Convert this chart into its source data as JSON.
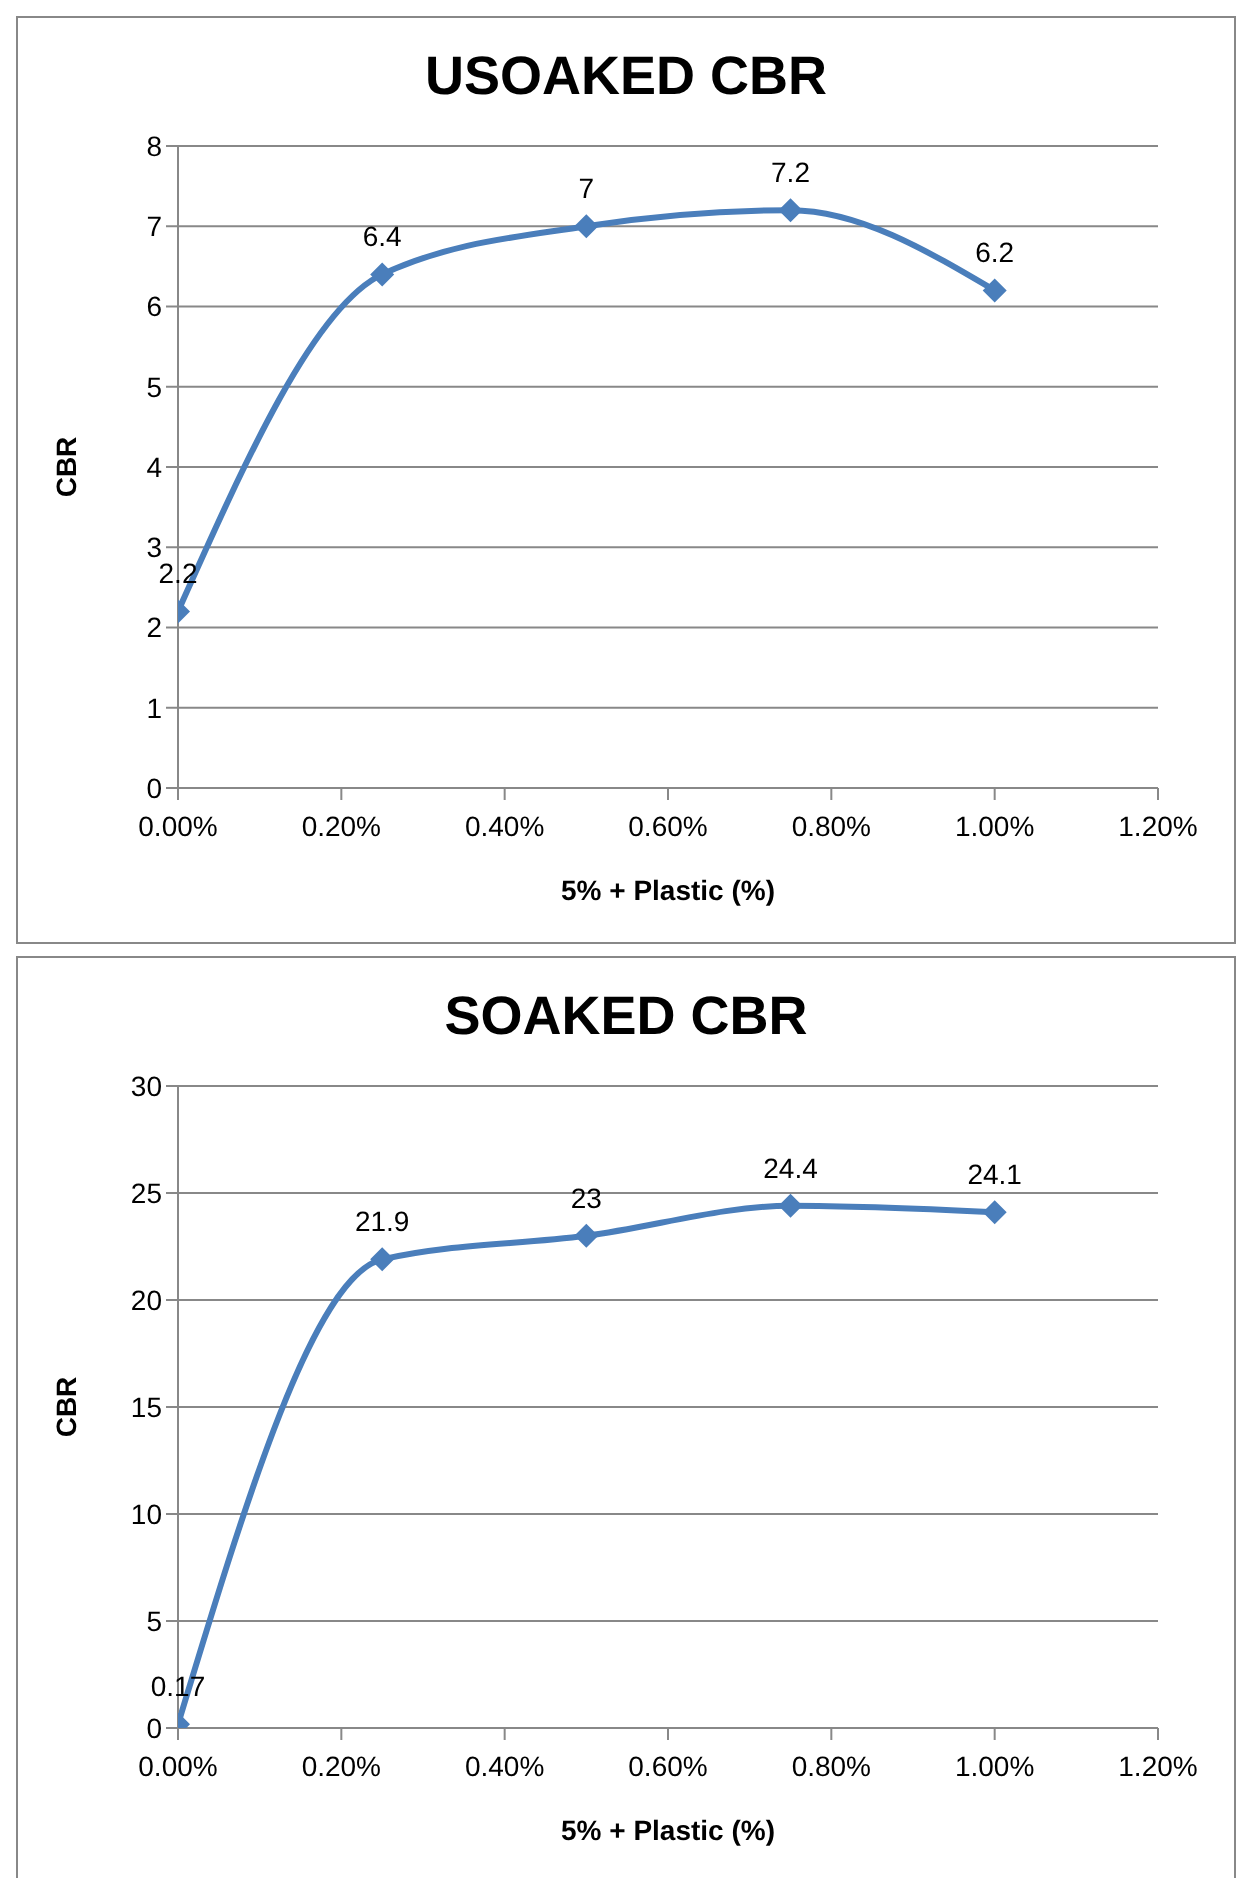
{
  "chart_data": [
    {
      "type": "line",
      "title": "USOAKED CBR",
      "xlabel": "5% + Plastic (%)",
      "ylabel": "CBR",
      "x": [
        0,
        0.25,
        0.5,
        0.75,
        1.0
      ],
      "series": [
        {
          "color": "#4a7ebb",
          "values": [
            2.2,
            6.4,
            7,
            7.2,
            6.2
          ]
        }
      ],
      "xlim": [
        0,
        1.2
      ],
      "xticks": [
        {
          "value": 0,
          "label": "0.00%"
        },
        {
          "value": 0.2,
          "label": "0.20%"
        },
        {
          "value": 0.4,
          "label": "0.40%"
        },
        {
          "value": 0.6,
          "label": "0.60%"
        },
        {
          "value": 0.8,
          "label": "0.80%"
        },
        {
          "value": 1.0,
          "label": "1.00%"
        },
        {
          "value": 1.2,
          "label": "1.20%"
        }
      ],
      "ylim": [
        0,
        8
      ],
      "yticks": [
        0,
        1,
        2,
        3,
        4,
        5,
        6,
        7,
        8
      ],
      "grid": "y",
      "marker": "diamond",
      "data_labels": true
    },
    {
      "type": "line",
      "title": "SOAKED CBR",
      "xlabel": "5% + Plastic (%)",
      "ylabel": "CBR",
      "x": [
        0,
        0.25,
        0.5,
        0.75,
        1.0
      ],
      "series": [
        {
          "color": "#4a7ebb",
          "values": [
            0.17,
            21.9,
            23,
            24.4,
            24.1
          ]
        }
      ],
      "xlim": [
        0,
        1.2
      ],
      "xticks": [
        {
          "value": 0,
          "label": "0.00%"
        },
        {
          "value": 0.2,
          "label": "0.20%"
        },
        {
          "value": 0.4,
          "label": "0.40%"
        },
        {
          "value": 0.6,
          "label": "0.60%"
        },
        {
          "value": 0.8,
          "label": "0.80%"
        },
        {
          "value": 1.0,
          "label": "1.00%"
        },
        {
          "value": 1.2,
          "label": "1.20%"
        }
      ],
      "ylim": [
        0,
        30
      ],
      "yticks": [
        0,
        5,
        10,
        15,
        20,
        25,
        30
      ],
      "grid": "y",
      "marker": "diamond",
      "data_labels": true
    }
  ]
}
